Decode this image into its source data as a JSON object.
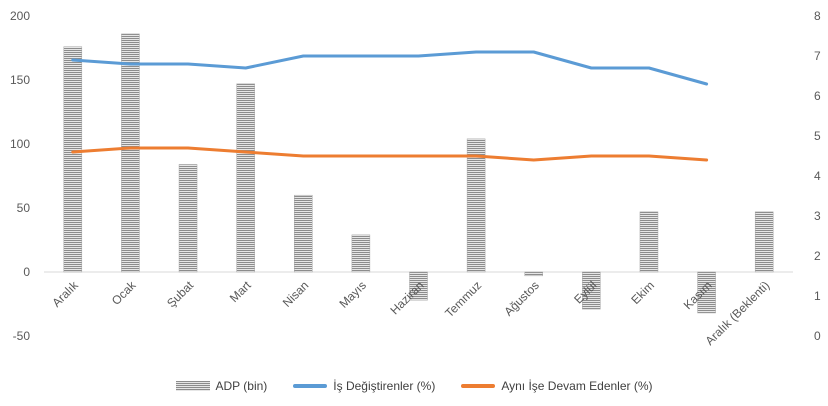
{
  "chart_data": {
    "type": "bar+line",
    "categories": [
      "Aralık",
      "Ocak",
      "Şubat",
      "Mart",
      "Nisan",
      "Mayıs",
      "Haziran",
      "Temmuz",
      "Ağustos",
      "Eylül",
      "Ekim",
      "Kasım",
      "Aralık (Beklenti)"
    ],
    "series": [
      {
        "name": "ADP (bin)",
        "kind": "bar",
        "axis": "left",
        "values": [
          176,
          186,
          84,
          147,
          60,
          29,
          -22,
          104,
          -3,
          -29,
          47,
          -32,
          47
        ]
      },
      {
        "name": "İş Değiştirenler (%)",
        "kind": "line",
        "axis": "right",
        "color": "#5b9bd5",
        "values": [
          6.9,
          6.8,
          6.8,
          6.7,
          7.0,
          7.0,
          7.0,
          7.1,
          7.1,
          6.7,
          6.7,
          6.3,
          null
        ]
      },
      {
        "name": "Aynı İşe Devam Edenler (%)",
        "kind": "line",
        "axis": "right",
        "color": "#ed7d31",
        "values": [
          4.6,
          4.7,
          4.7,
          4.6,
          4.5,
          4.5,
          4.5,
          4.5,
          4.4,
          4.5,
          4.5,
          4.4,
          null
        ]
      }
    ],
    "y_left": {
      "min": -50,
      "max": 200,
      "ticks": [
        -50,
        0,
        50,
        100,
        150,
        200
      ]
    },
    "y_right": {
      "min": 0,
      "max": 8,
      "ticks": [
        0,
        1,
        2,
        3,
        4,
        5,
        6,
        7,
        8
      ]
    },
    "grid": false,
    "legend_position": "bottom"
  },
  "legend": {
    "items": [
      "ADP (bin)",
      "İş Değiştirenler (%)",
      "Aynı İşe Devam Edenler (%)"
    ]
  }
}
